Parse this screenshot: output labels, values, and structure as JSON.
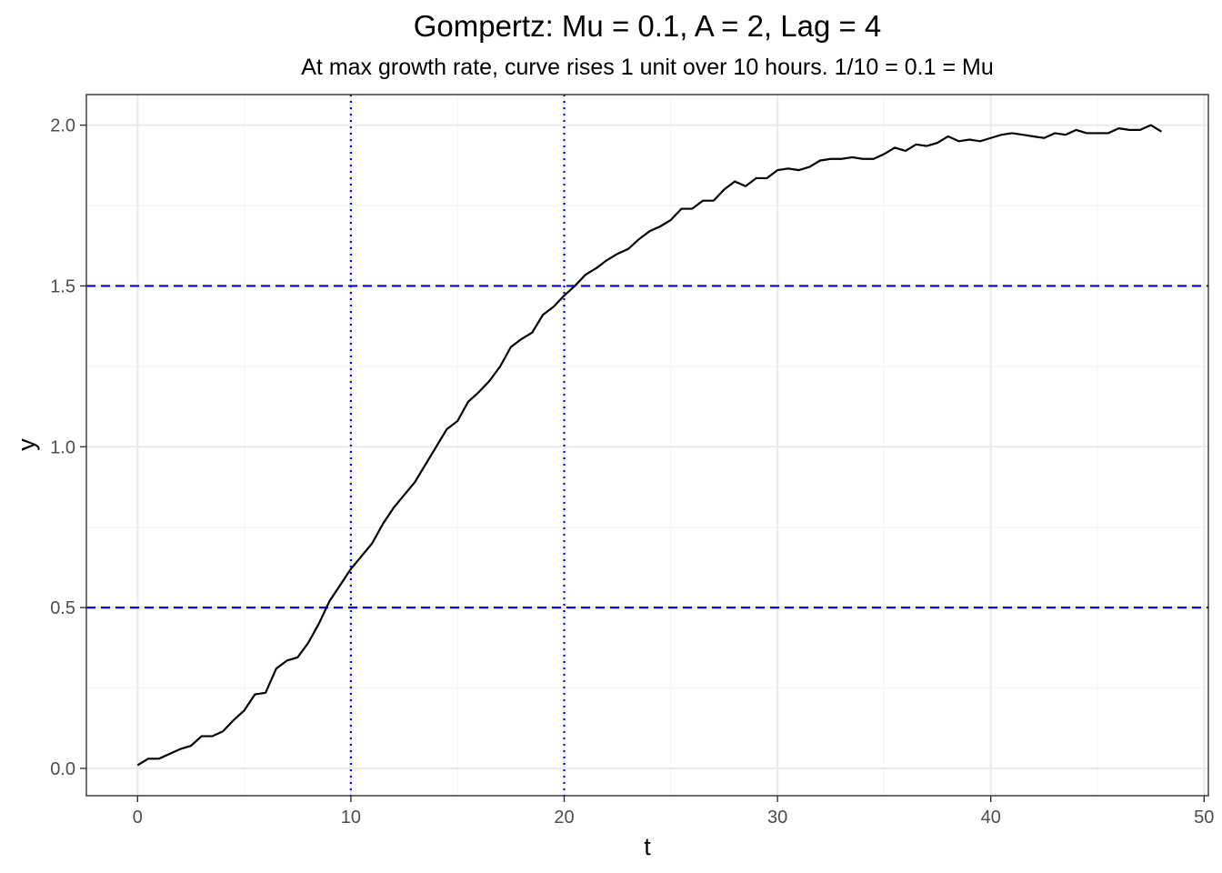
{
  "chart_data": {
    "type": "line",
    "title": "Gompertz: Mu = 0.1, A = 2, Lag = 4",
    "subtitle": "At max growth rate, curve rises 1 unit over 10 hours. 1/10 = 0.1 = Mu",
    "xlabel": "t",
    "ylabel": "y",
    "xlim": [
      -2.4,
      50.2
    ],
    "ylim": [
      -0.085,
      2.095
    ],
    "x_ticks": [
      0,
      10,
      20,
      30,
      40,
      50
    ],
    "x_tick_labels": [
      "0",
      "10",
      "20",
      "30",
      "40",
      "50"
    ],
    "y_ticks": [
      0.0,
      0.5,
      1.0,
      1.5,
      2.0
    ],
    "y_tick_labels": [
      "0.0",
      "0.5",
      "1.0",
      "1.5",
      "2.0"
    ],
    "grid": true,
    "legend": "none",
    "series": [
      {
        "color": "#000000",
        "x": [
          0,
          0.5,
          1,
          1.5,
          2,
          2.5,
          3,
          3.5,
          4,
          4.5,
          5,
          5.5,
          6,
          6.5,
          7,
          7.5,
          8,
          8.5,
          9,
          9.5,
          10,
          10.5,
          11,
          11.5,
          12,
          12.5,
          13,
          13.5,
          14,
          14.5,
          15,
          15.5,
          16,
          16.5,
          17,
          17.5,
          18,
          18.5,
          19,
          19.5,
          20,
          20.5,
          21,
          21.5,
          22,
          22.5,
          23,
          23.5,
          24,
          24.5,
          25,
          25.5,
          26,
          26.5,
          27,
          27.5,
          28,
          28.5,
          29,
          29.5,
          30,
          30.5,
          31,
          31.5,
          32,
          32.5,
          33,
          33.5,
          34,
          34.5,
          35,
          35.5,
          36,
          36.5,
          37,
          37.5,
          38,
          38.5,
          39,
          39.5,
          40,
          40.5,
          41,
          41.5,
          42,
          42.5,
          43,
          43.5,
          44,
          44.5,
          45,
          45.5,
          46,
          46.5,
          47,
          47.5,
          48
        ],
        "y": [
          0.01,
          0.03,
          0.03,
          0.045,
          0.06,
          0.07,
          0.1,
          0.1,
          0.115,
          0.15,
          0.18,
          0.23,
          0.235,
          0.31,
          0.335,
          0.345,
          0.39,
          0.45,
          0.52,
          0.57,
          0.62,
          0.66,
          0.7,
          0.76,
          0.81,
          0.85,
          0.89,
          0.945,
          1.0,
          1.055,
          1.08,
          1.14,
          1.17,
          1.205,
          1.25,
          1.31,
          1.335,
          1.355,
          1.41,
          1.435,
          1.47,
          1.5,
          1.535,
          1.555,
          1.58,
          1.6,
          1.615,
          1.645,
          1.67,
          1.685,
          1.705,
          1.74,
          1.74,
          1.765,
          1.765,
          1.8,
          1.825,
          1.81,
          1.835,
          1.835,
          1.86,
          1.865,
          1.86,
          1.87,
          1.89,
          1.895,
          1.895,
          1.9,
          1.895,
          1.895,
          1.91,
          1.93,
          1.92,
          1.94,
          1.935,
          1.945,
          1.965,
          1.95,
          1.955,
          1.95,
          1.96,
          1.97,
          1.975,
          1.97,
          1.965,
          1.96,
          1.975,
          1.97,
          1.985,
          1.975,
          1.975,
          1.975,
          1.99,
          1.985,
          1.985,
          2.0,
          1.98
        ]
      }
    ],
    "reference_lines": {
      "horizontal": {
        "values": [
          0.5,
          1.5
        ],
        "style": "dashed",
        "color": "#0000ff"
      },
      "vertical": {
        "values": [
          10,
          20
        ],
        "style": "dotted",
        "color": "#0000ff"
      }
    },
    "colors": {
      "panel_border": "#333333",
      "grid_major": "#ebebeb",
      "grid_minor": "#f5f5f5"
    }
  }
}
